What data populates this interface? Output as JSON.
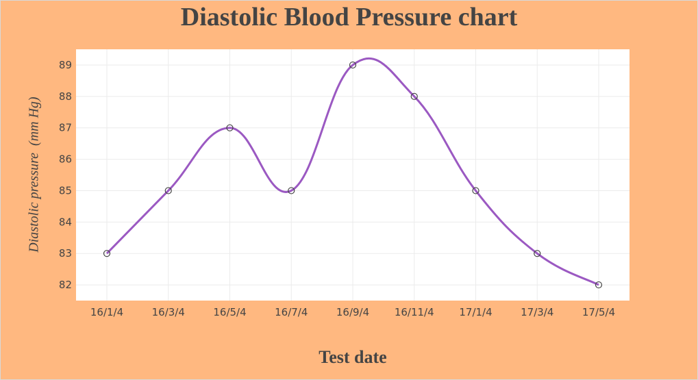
{
  "chart_data": {
    "type": "line",
    "title": "Diastolic Blood Pressure chart",
    "xlabel": "Test date",
    "ylabel": "Diastolic pressure  (mm Hg)",
    "categories": [
      "16/1/4",
      "16/3/4",
      "16/5/4",
      "16/7/4",
      "16/9/4",
      "16/11/4",
      "17/1/4",
      "17/3/4",
      "17/5/4"
    ],
    "series": [
      {
        "values": [
          83,
          85,
          87,
          85,
          89,
          88,
          85,
          83,
          82
        ]
      }
    ],
    "ylim": [
      81.5,
      89.5
    ],
    "yticks": [
      82,
      83,
      84,
      85,
      86,
      87,
      88,
      89
    ],
    "grid": true,
    "legend": "none",
    "colors": {
      "line": "#9B59C2",
      "marker_stroke": "#444444",
      "plot_background": "#FFFFFF",
      "page_background": "#FFB880",
      "grid": "#EBEBEB"
    }
  }
}
